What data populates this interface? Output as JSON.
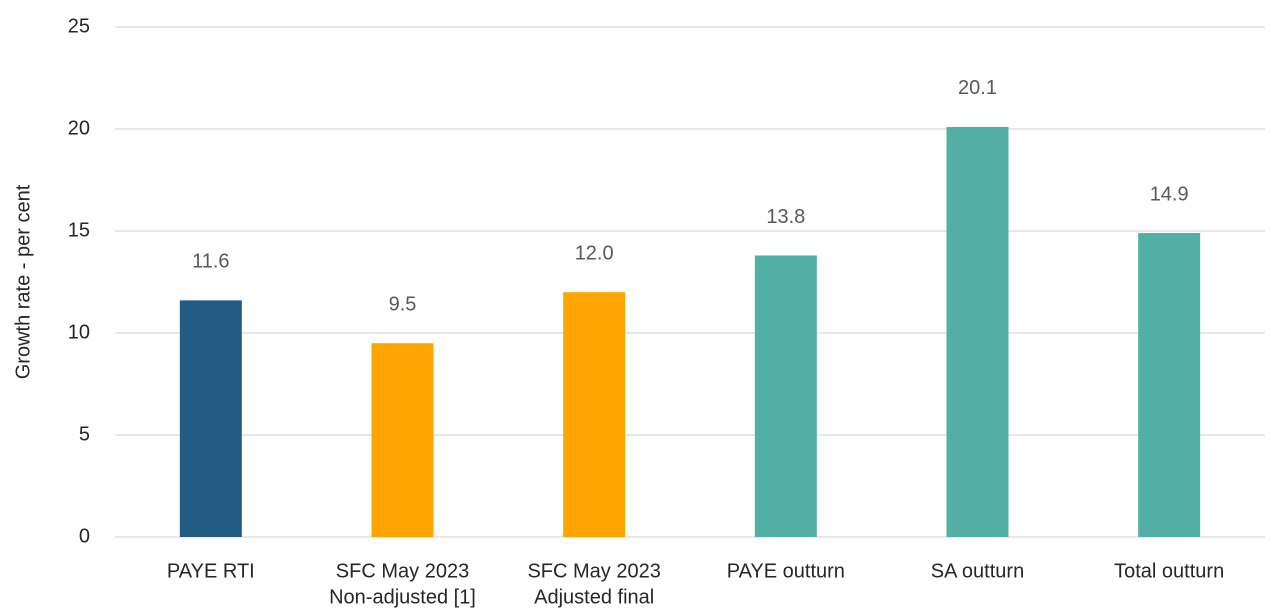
{
  "chart_data": {
    "type": "bar",
    "y_label": "Growth rate - per cent",
    "categories": [
      [
        "PAYE RTI"
      ],
      [
        "SFC May 2023",
        "Non-adjusted [1]"
      ],
      [
        "SFC May 2023",
        "Adjusted final"
      ],
      [
        "PAYE outturn"
      ],
      [
        "SA outturn"
      ],
      [
        "Total outturn"
      ]
    ],
    "values": [
      11.6,
      9.5,
      12.0,
      13.8,
      20.1,
      14.9
    ],
    "value_labels": [
      "11.6",
      "9.5",
      "12.0",
      "13.8",
      "20.1",
      "14.9"
    ],
    "colors": [
      "#225b83",
      "#ffa500",
      "#ffa500",
      "#52afa6",
      "#52afa6",
      "#52afa6"
    ],
    "ylim": [
      0,
      25
    ],
    "yticks": [
      0,
      5,
      10,
      15,
      20,
      25
    ],
    "grid": true
  }
}
